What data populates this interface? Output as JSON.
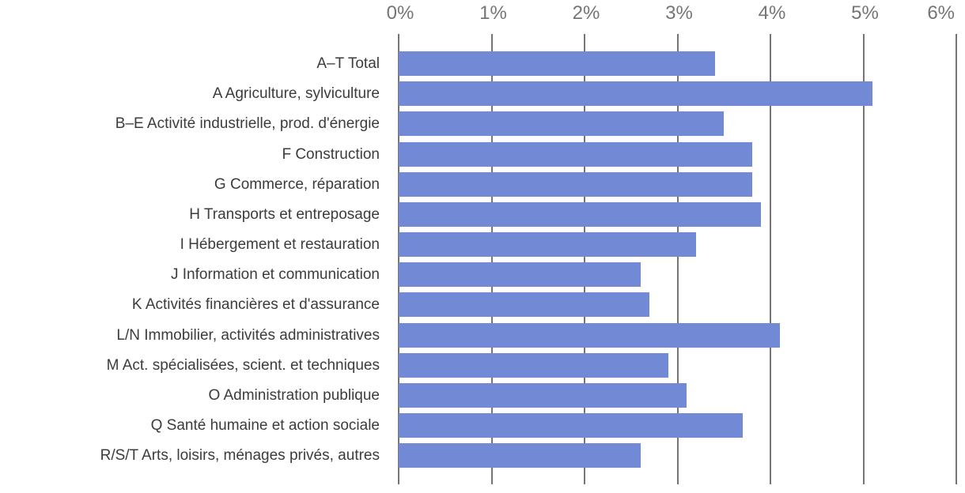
{
  "chart_data": {
    "type": "bar",
    "orientation": "horizontal",
    "title": "",
    "xlabel": "",
    "ylabel": "",
    "unit": "%",
    "xlim": [
      0,
      6
    ],
    "x_ticks": [
      "0%",
      "1%",
      "2%",
      "3%",
      "4%",
      "5%",
      "6%"
    ],
    "grid": true,
    "legend": false,
    "categories": [
      "A–T Total",
      "A Agriculture, sylviculture",
      "B–E Activité industrielle, prod. d'énergie",
      "F Construction",
      "G Commerce, réparation",
      "H Transports et entreposage",
      "I Hébergement et restauration",
      "J Information et communication",
      "K Activités financières et d'assurance",
      "L/N Immobilier, activités administratives",
      "M Act. spécialisées, scient. et techniques",
      "O Administration publique",
      "Q Santé humaine et action sociale",
      "R/S/T Arts, loisirs, ménages privés, autres"
    ],
    "values": [
      3.4,
      5.1,
      3.5,
      3.8,
      3.8,
      3.9,
      3.2,
      2.6,
      2.7,
      4.1,
      2.9,
      3.1,
      3.7,
      2.6
    ],
    "colors": {
      "bar": "#7289d6",
      "gridline": "#757575",
      "tick_label": "#757575",
      "category_label": "#3c3c3c",
      "background": "#ffffff"
    }
  }
}
